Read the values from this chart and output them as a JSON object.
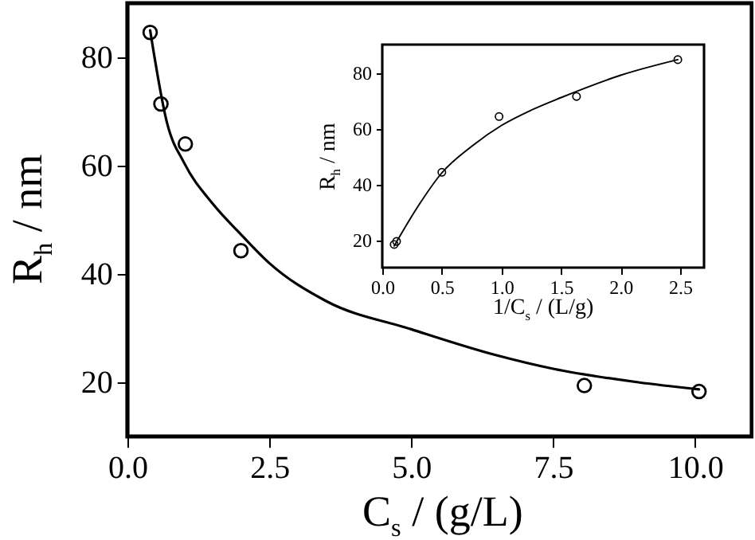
{
  "chart_data": [
    {
      "type": "scatter",
      "xlabel": "C$_{s}$ / (g/L)",
      "ylabel": "R$_{h}$ / nm",
      "xlim": [
        0,
        11
      ],
      "ylim": [
        10,
        90
      ],
      "xticks": [
        {
          "value": 0,
          "label": "0.0"
        },
        {
          "value": 2.5,
          "label": "2.5"
        },
        {
          "value": 5,
          "label": "5.0"
        },
        {
          "value": 7.5,
          "label": "7.5"
        },
        {
          "value": 10,
          "label": "10.0"
        }
      ],
      "yticks": [
        20,
        40,
        60,
        80
      ],
      "grid": false,
      "marker": "circle",
      "series": [
        {
          "color": "#000000",
          "x": [
            0.4,
            0.59,
            1.02,
            2.0,
            8.05,
            10.07
          ],
          "values": [
            84.6,
            71.4,
            64.0,
            44.3,
            19.4,
            18.3
          ]
        },
        {
          "type": "line",
          "color": "#000000",
          "marker": "none",
          "x": [
            0.4,
            0.7,
            1.0,
            1.5,
            2.0,
            2.5,
            3.5,
            5.0,
            6.5,
            7.5,
            9.0,
            10.07
          ],
          "values": [
            85,
            67.8,
            60.5,
            53,
            47.3,
            42,
            35,
            29.8,
            25,
            22.5,
            20,
            18.7
          ]
        }
      ]
    },
    {
      "type": "scatter",
      "xlabel": "1/C$_{s}$ / (L/g)",
      "ylabel": "R$_{h}$ / nm",
      "xlim": [
        0,
        2.7
      ],
      "ylim": [
        10,
        90
      ],
      "xticks": [
        {
          "value": 0,
          "label": "0.0"
        },
        0.5,
        {
          "value": 1,
          "label": "1.0"
        },
        1.5,
        {
          "value": 2,
          "label": "2.0"
        },
        2.5
      ],
      "yticks": [
        20,
        40,
        60,
        80
      ],
      "grid": false,
      "marker": "circle",
      "series": [
        {
          "color": "#000000",
          "x": [
            0.1,
            0.12,
            0.5,
            0.98,
            1.63,
            2.48
          ],
          "values": [
            18.3,
            19.4,
            44.2,
            64.2,
            71.4,
            84.6
          ]
        },
        {
          "type": "line",
          "color": "#000000",
          "marker": "none",
          "x": [
            0.1,
            0.3,
            0.5,
            0.75,
            1.0,
            1.25,
            1.5,
            2.0,
            2.48
          ],
          "values": [
            17.8,
            32,
            44,
            53.5,
            61,
            66.5,
            71,
            79,
            84.6
          ]
        }
      ]
    }
  ]
}
